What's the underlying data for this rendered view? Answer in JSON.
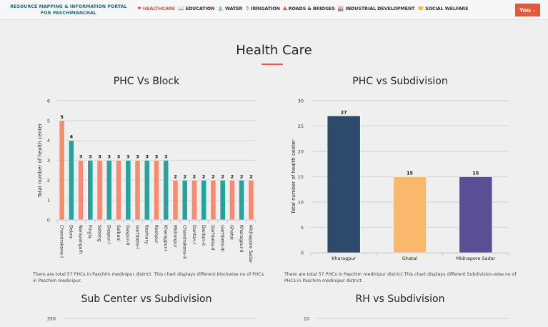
{
  "header": {
    "brand_line1": "RESOURCE MAPPING & INFORMATION PORTAL",
    "brand_line2": "FOR PASCHIMANCHAL",
    "nav": [
      {
        "label": "HEALTHCARE",
        "icon": "heartbeat-icon",
        "glyph": "❤",
        "active": true
      },
      {
        "label": "EDUCATION",
        "icon": "book-icon",
        "glyph": "📖",
        "active": false
      },
      {
        "label": "WATER",
        "icon": "tap-icon",
        "glyph": "⛲",
        "active": false
      },
      {
        "label": "IRRIGATION",
        "icon": "irrigation-icon",
        "glyph": "⚱",
        "active": false
      },
      {
        "label": "ROADS & BRIDGES",
        "icon": "road-icon",
        "glyph": "⛰",
        "active": false
      },
      {
        "label": "INDUSTRIAL DEVELOPMENT",
        "icon": "factory-icon",
        "glyph": "🏭",
        "active": false
      },
      {
        "label": "SOCIAL WELFARE",
        "icon": "handshake-icon",
        "glyph": "🤝",
        "active": false
      }
    ],
    "user_button": "You",
    "accent_color": "#e8573a"
  },
  "page": {
    "title": "Health Care"
  },
  "sections": [
    {
      "title": "PHC Vs Block",
      "description": "There are total 57 PHCs in Paschim medinipur district. This chart displays different blockwise no of PHCs in Paschim medinipur."
    },
    {
      "title": "PHC vs Subdivision",
      "description": "There are total 57 PHCs in Paschim medinipur district.This chart displays different Subdivision-wise no of PHCs in Paschim medinipur district."
    },
    {
      "title": "Sub Center vs Subdivision",
      "description": ""
    },
    {
      "title": "RH vs Subdivision",
      "description": ""
    }
  ],
  "chart_data": [
    {
      "type": "bar",
      "title": "PHC Vs Block",
      "xlabel": "",
      "ylabel": "Total number of health center",
      "ylim": [
        0,
        6
      ],
      "yticks": [
        0,
        1,
        2,
        3,
        4,
        5,
        6
      ],
      "grid": true,
      "categories": [
        "Chandrakona-I",
        "Debra",
        "Narayangarh",
        "Pingla",
        "Sabong",
        "Daspur-I",
        "Salboni",
        "Daspur-II",
        "Garhbeta-I",
        "Keshiary",
        "Keshpur",
        "Kharagpur-I",
        "Mohanpur",
        "Chandrakona-II",
        "Dantan-I",
        "Dantan-II",
        "Garhbeta-II",
        "Garhbeta-III",
        "Ghatal",
        "Kharagpur-II",
        "Midnapore Sadar"
      ],
      "values": [
        5,
        4,
        3,
        3,
        3,
        3,
        3,
        3,
        3,
        3,
        3,
        3,
        2,
        2,
        2,
        2,
        2,
        2,
        2,
        2,
        2
      ],
      "colors": [
        "#f98a72",
        "#27a39b"
      ]
    },
    {
      "type": "bar",
      "title": "PHC vs Subdivision",
      "xlabel": "",
      "ylabel": "Total number of health center",
      "ylim": [
        0,
        30
      ],
      "yticks": [
        0,
        5,
        10,
        15,
        20,
        25,
        30
      ],
      "grid": true,
      "categories": [
        "Kharagpur",
        "Ghatal",
        "Midnapore Sadar"
      ],
      "values": [
        27,
        15,
        15
      ],
      "colors": [
        "#2e4a6b",
        "#f9b86b",
        "#5a4e94"
      ]
    },
    {
      "type": "bar",
      "title": "Sub Center vs Subdivision",
      "yticks": [
        350
      ],
      "grid": true
    },
    {
      "type": "bar",
      "title": "RH vs Subdivision",
      "yticks": [
        10
      ],
      "grid": true
    }
  ]
}
